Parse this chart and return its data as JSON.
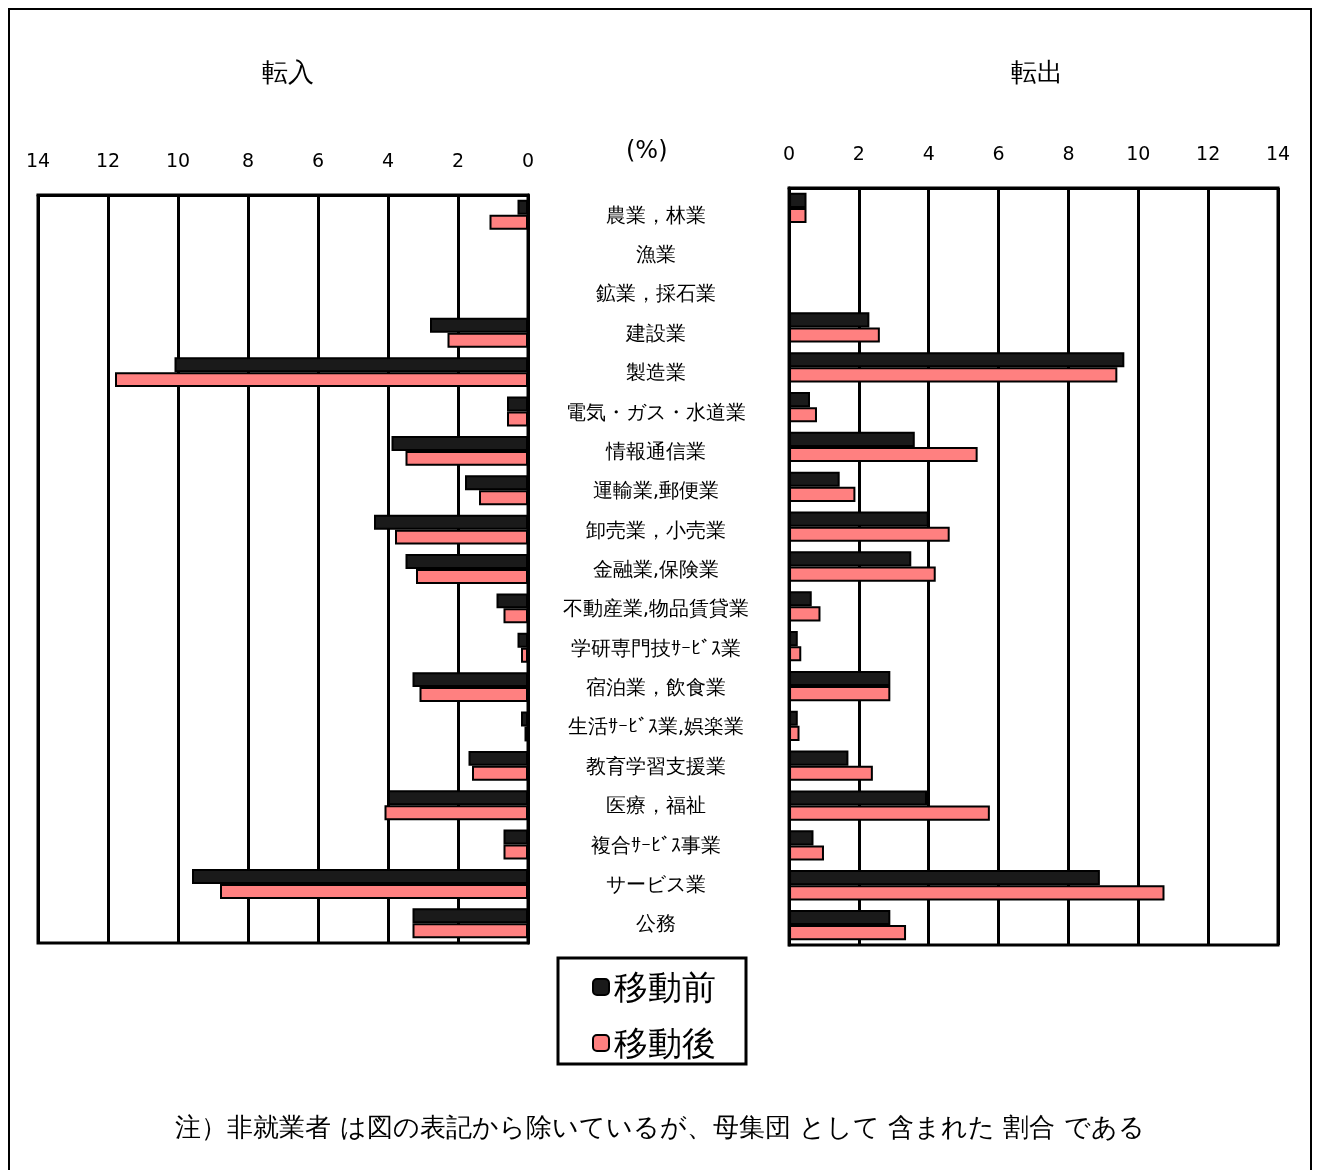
{
  "chart_data": [
    {
      "type": "bar",
      "orientation": "horizontal",
      "title": "転入",
      "ylabel": "(%)",
      "categories": [
        "農業，林業",
        "漁業",
        "鉱業，採石業",
        "建設業",
        "製造業",
        "電気・ガス・水道業",
        "情報通信業",
        "運輸業,郵便業",
        "卸売業，小売業",
        "金融業,保険業",
        "不動産業,物品賃貸業",
        "学研専門技ｻｰﾋﾞｽ業",
        "宿泊業，飲食業",
        "生活ｻｰﾋﾞｽ業,娯楽業",
        "教育学習支援業",
        "医療，福祉",
        "複合ｻｰﾋﾞｽ事業",
        "サービス業",
        "公務"
      ],
      "series": [
        {
          "name": "移動前",
          "color": "#1a1a1a",
          "values": [
            0.3,
            0,
            0,
            2.8,
            10.1,
            0.6,
            3.9,
            1.8,
            4.4,
            3.5,
            0.9,
            0.3,
            3.3,
            0.2,
            1.7,
            4.0,
            0.7,
            9.6,
            3.3
          ]
        },
        {
          "name": "移動後",
          "color": "#ff8080",
          "values": [
            1.1,
            0,
            0,
            2.3,
            11.8,
            0.6,
            3.5,
            1.4,
            3.8,
            3.2,
            0.7,
            0.2,
            3.1,
            0.1,
            1.6,
            4.1,
            0.7,
            8.8,
            3.3
          ]
        }
      ],
      "xlim": [
        14,
        0
      ],
      "xticks": [
        14,
        12,
        10,
        8,
        6,
        4,
        2,
        0
      ],
      "grid": "x",
      "legend": "bottom",
      "annotations": [
        "注）非就業者 は図の表記から除いているが、母集団 として 含まれた 割合 である"
      ]
    },
    {
      "type": "bar",
      "orientation": "horizontal",
      "title": "転出",
      "categories": [
        null,
        null,
        null,
        null,
        null,
        null,
        null,
        null,
        null,
        null,
        null,
        null,
        null,
        null,
        null,
        null,
        null,
        null,
        null
      ],
      "series": [
        {
          "color": "#1a1a1a",
          "values": [
            0.5,
            0,
            0,
            2.3,
            9.6,
            0.6,
            3.6,
            1.45,
            4.0,
            3.5,
            0.65,
            0.25,
            2.9,
            0.25,
            1.7,
            3.95,
            0.7,
            8.9,
            2.9
          ]
        },
        {
          "color": "#ff8080",
          "values": [
            0.5,
            0,
            0,
            2.6,
            9.4,
            0.8,
            5.4,
            1.9,
            4.6,
            4.2,
            0.9,
            0.35,
            2.9,
            0.3,
            2.4,
            5.75,
            1.0,
            10.75,
            3.35
          ]
        }
      ],
      "xlim": [
        0,
        14
      ],
      "xticks": [
        0,
        2,
        4,
        6,
        8,
        10,
        12,
        14
      ],
      "grid": "x",
      "tick_labels": "x"
    }
  ]
}
